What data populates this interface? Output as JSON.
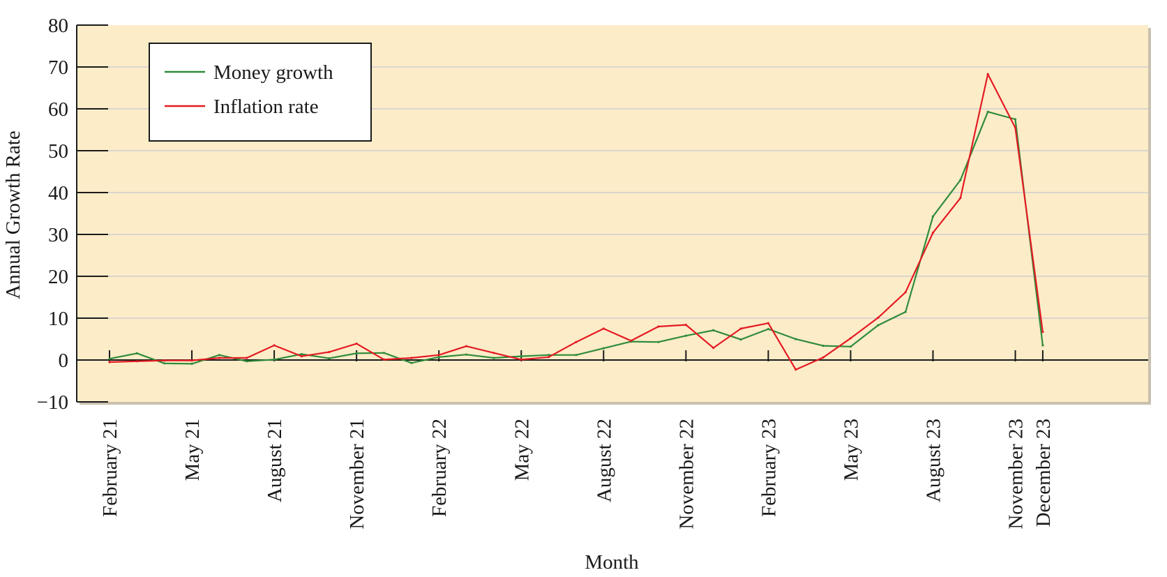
{
  "chart_data": {
    "type": "line",
    "xlabel": "Month",
    "ylabel": "Annual Growth Rate",
    "ylim": [
      -10,
      80
    ],
    "yticks": [
      -10,
      0,
      10,
      20,
      30,
      40,
      50,
      60,
      70,
      80
    ],
    "grid": "horizontal",
    "legend_position": "top-left",
    "x_labels": [
      {
        "label": "February 21",
        "index": 0
      },
      {
        "label": "May 21",
        "index": 3
      },
      {
        "label": "August 21",
        "index": 6
      },
      {
        "label": "November 21",
        "index": 9
      },
      {
        "label": "February 22",
        "index": 12
      },
      {
        "label": "May 22",
        "index": 15
      },
      {
        "label": "August 22",
        "index": 18
      },
      {
        "label": "November 22",
        "index": 21
      },
      {
        "label": "February 23",
        "index": 24
      },
      {
        "label": "May 23",
        "index": 27
      },
      {
        "label": "August 23",
        "index": 30
      },
      {
        "label": "November 23",
        "index": 33
      },
      {
        "label": "December 23",
        "index": 34
      }
    ],
    "series": [
      {
        "name": "Money growth",
        "color": "#2e8b3a",
        "values": [
          0.3,
          1.6,
          -0.8,
          -0.9,
          1.2,
          -0.3,
          0.1,
          1.4,
          0.4,
          1.6,
          1.7,
          -0.7,
          0.7,
          1.3,
          0.5,
          0.9,
          1.2,
          1.2,
          2.8,
          4.4,
          4.3,
          5.8,
          7.1,
          4.9,
          7.4,
          5.0,
          3.4,
          3.2,
          8.3,
          11.5,
          34.3,
          43.0,
          59.3,
          57.5,
          3.5
        ]
      },
      {
        "name": "Inflation rate",
        "color": "#e31b23",
        "values": [
          -0.5,
          -0.3,
          -0.1,
          -0.1,
          0.5,
          0.5,
          3.5,
          0.9,
          1.9,
          3.9,
          0.1,
          0.5,
          1.2,
          3.3,
          1.7,
          0.1,
          0.7,
          4.3,
          7.5,
          4.6,
          8.0,
          8.4,
          2.9,
          7.5,
          8.8,
          -2.3,
          0.6,
          5.2,
          10.1,
          16.2,
          30.4,
          38.7,
          68.3,
          55.5,
          6.7
        ]
      }
    ]
  }
}
